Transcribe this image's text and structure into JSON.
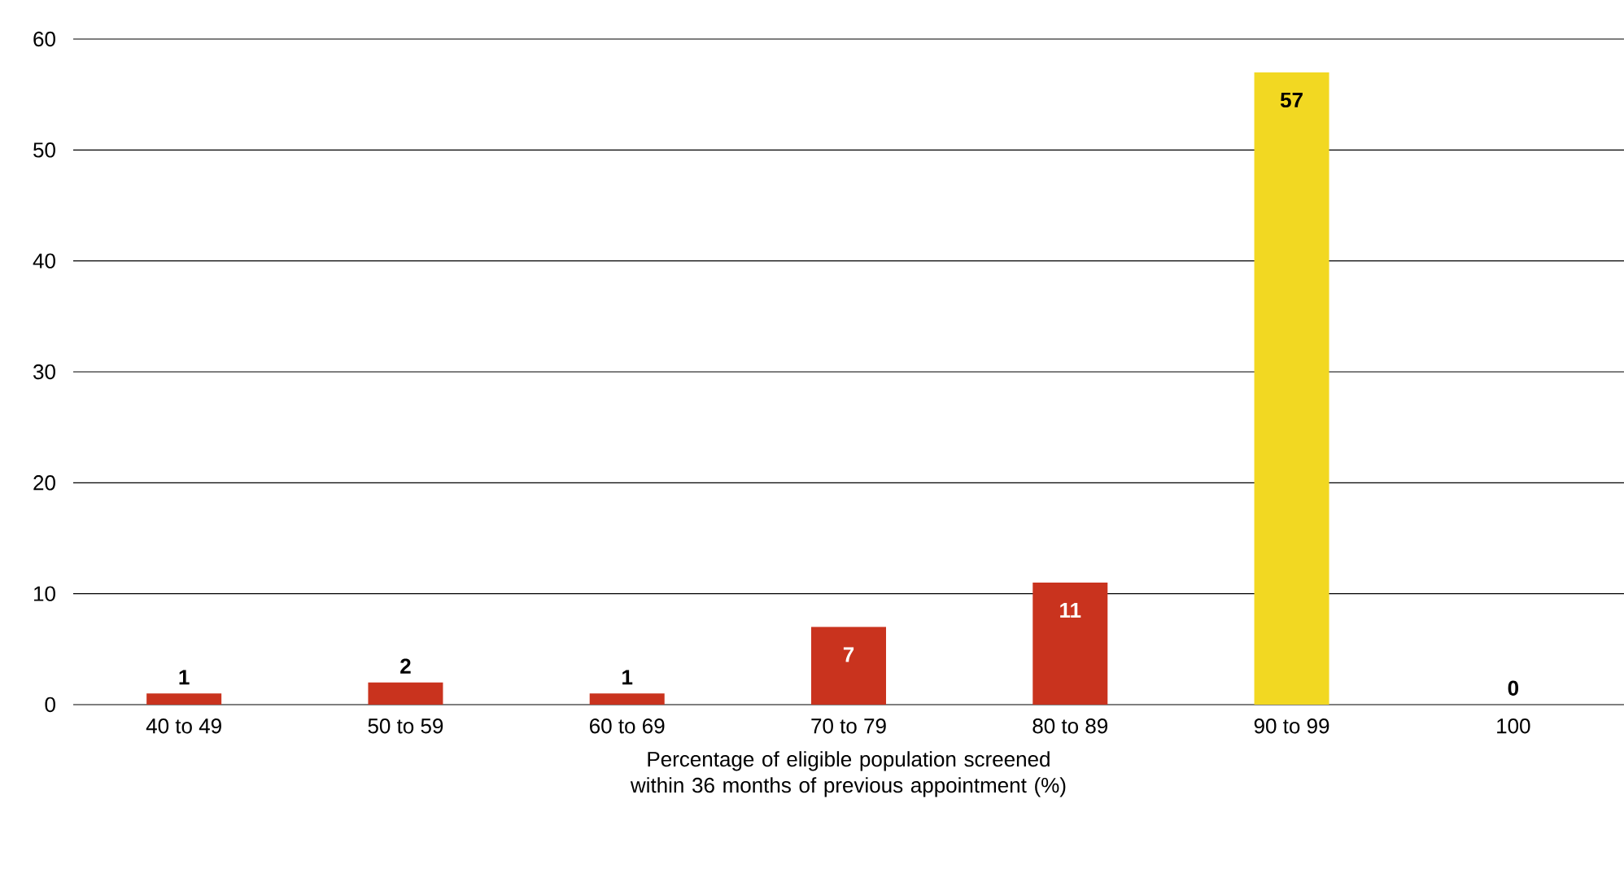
{
  "chart_data": {
    "type": "bar",
    "xlabel": "Percentage of eligible population screened within 36 months of previous appointment (%)",
    "categories": [
      "40 to 49",
      "50 to 59",
      "60 to 69",
      "70 to 79",
      "80 to 89",
      "90 to 99",
      "100"
    ],
    "values": [
      1,
      2,
      1,
      7,
      11,
      57,
      0
    ],
    "colors": [
      "#c9331e",
      "#c9331e",
      "#c9331e",
      "#c9331e",
      "#c9331e",
      "#f2d822",
      "#c9331e"
    ],
    "ylim": [
      0,
      60
    ],
    "yticks": [
      0,
      10,
      20,
      30,
      40,
      50,
      60
    ],
    "grid": "y",
    "data_labels": true
  }
}
